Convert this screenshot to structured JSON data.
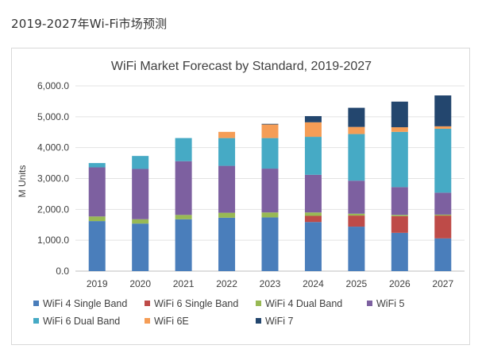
{
  "page": {
    "heading": "2019-2027年Wi-Fi市场预测"
  },
  "chart_data": {
    "type": "bar",
    "stacked": true,
    "title": "WiFi Market Forecast by Standard, 2019-2027",
    "xlabel": "",
    "ylabel": "M Units",
    "ylim": [
      0,
      6000
    ],
    "yticks": [
      0,
      1000,
      2000,
      3000,
      4000,
      5000,
      6000
    ],
    "ytick_labels": [
      "0.0",
      "1,000.0",
      "2,000.0",
      "3,000.0",
      "4,000.0",
      "5,000.0",
      "6,000.0"
    ],
    "grid": true,
    "legend_position": "bottom",
    "categories": [
      "2019",
      "2020",
      "2021",
      "2022",
      "2023",
      "2024",
      "2025",
      "2026",
      "2027"
    ],
    "series": [
      {
        "name": "WiFi 4 Single Band",
        "color": "#4a7ebb",
        "values": [
          1620,
          1540,
          1680,
          1730,
          1740,
          1590,
          1440,
          1240,
          1060
        ]
      },
      {
        "name": "WiFi 6 Single Band",
        "color": "#be4b48",
        "values": [
          0,
          0,
          0,
          0,
          0,
          200,
          360,
          540,
          740
        ]
      },
      {
        "name": "WiFi 4 Dual Band",
        "color": "#98b954",
        "values": [
          150,
          140,
          140,
          160,
          160,
          110,
          60,
          40,
          30
        ]
      },
      {
        "name": "WiFi 5",
        "color": "#7d60a0",
        "values": [
          1590,
          1630,
          1740,
          1520,
          1420,
          1220,
          1070,
          900,
          710
        ]
      },
      {
        "name": "WiFi 6 Dual Band",
        "color": "#46aac5",
        "values": [
          140,
          420,
          750,
          900,
          990,
          1230,
          1510,
          1790,
          2070
        ]
      },
      {
        "name": "WiFi 6E",
        "color": "#f59d56",
        "values": [
          0,
          0,
          0,
          200,
          440,
          470,
          230,
          150,
          80
        ]
      },
      {
        "name": "WiFi 7",
        "color": "#23466e",
        "values": [
          0,
          0,
          0,
          0,
          20,
          200,
          620,
          830,
          1000
        ]
      }
    ]
  }
}
